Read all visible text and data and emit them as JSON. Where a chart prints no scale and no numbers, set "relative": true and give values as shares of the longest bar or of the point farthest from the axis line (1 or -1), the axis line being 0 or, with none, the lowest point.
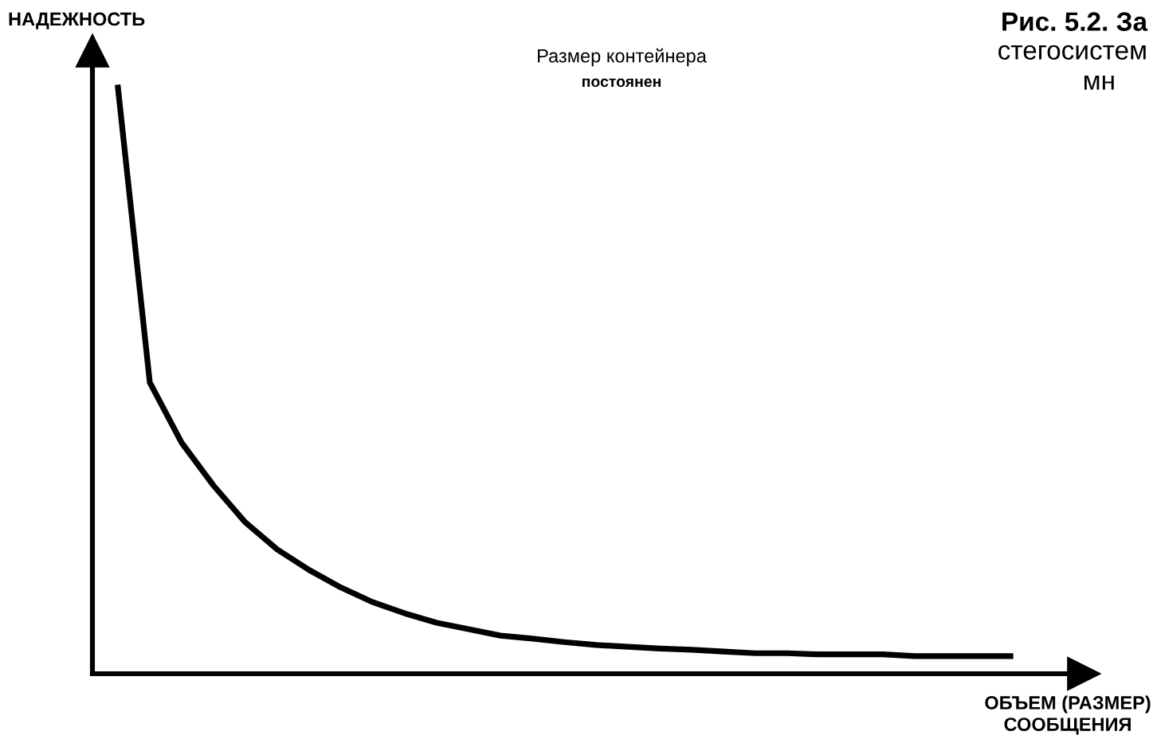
{
  "chart_data": {
    "type": "line",
    "relative": true,
    "xlabel": "ОБЪЕМ (РАЗМЕР)\nСООБЩЕНИЯ",
    "ylabel": "НАДЕЖНОСТЬ",
    "annotations": [
      "Рис. 5.2. За",
      "стегосистем",
      "мн",
      "Размер контейнера",
      "постоянен"
    ],
    "categories": [
      null,
      null,
      null,
      null,
      null,
      null,
      null,
      null,
      null,
      null,
      null,
      null,
      null,
      null,
      null,
      null,
      null,
      null,
      null,
      null,
      null,
      null,
      null,
      null,
      null,
      null,
      null,
      null,
      null
    ],
    "series": [
      {
        "color": "#000000",
        "values": [
          1.0,
          0.497,
          0.394,
          0.321,
          0.258,
          0.212,
          0.177,
          0.147,
          0.122,
          0.103,
          0.087,
          0.076,
          0.065,
          0.06,
          0.054,
          0.049,
          0.046,
          0.043,
          0.041,
          0.038,
          0.035,
          0.035,
          0.033,
          0.033,
          0.033,
          0.03,
          0.03,
          0.03,
          0.03
        ]
      }
    ],
    "marker": "none",
    "line_style": "solid"
  }
}
